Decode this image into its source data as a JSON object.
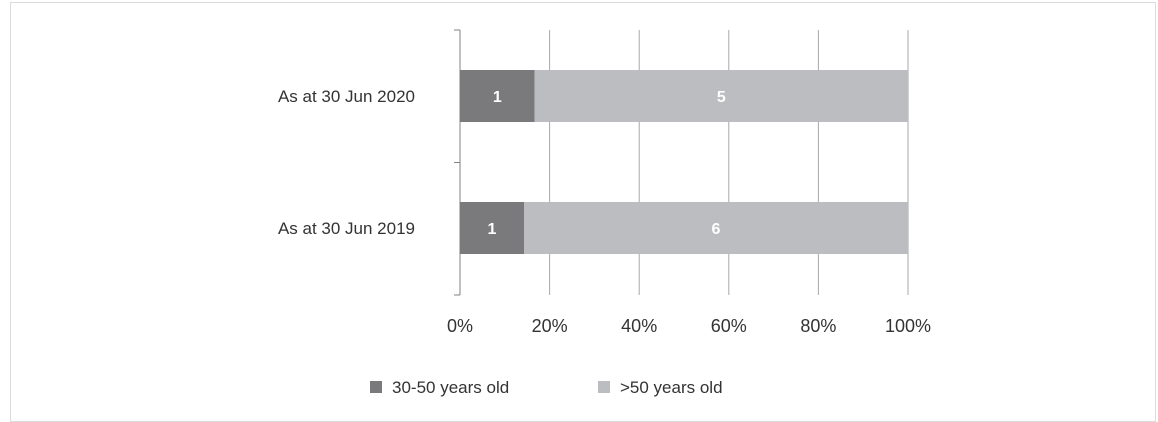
{
  "chart_data": {
    "type": "bar",
    "orientation": "horizontal",
    "stacked": "percent",
    "categories": [
      "As at 30 Jun 2020",
      "As at 30 Jun 2019"
    ],
    "series": [
      {
        "name": "30-50 years old",
        "values": [
          1,
          1
        ],
        "color": "#7a7a7c"
      },
      {
        "name": ">50 years old",
        "values": [
          5,
          6
        ],
        "color": "#bcbdc0"
      }
    ],
    "x_ticks": [
      "0%",
      "20%",
      "40%",
      "60%",
      "80%",
      "100%"
    ],
    "xlim": [
      0,
      100
    ],
    "grid": true,
    "legend_position": "bottom"
  }
}
